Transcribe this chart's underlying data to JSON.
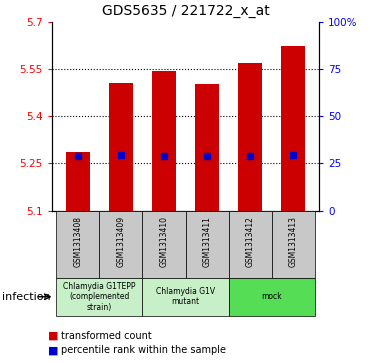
{
  "title": "GDS5635 / 221722_x_at",
  "samples": [
    "GSM1313408",
    "GSM1313409",
    "GSM1313410",
    "GSM1313411",
    "GSM1313412",
    "GSM1313413"
  ],
  "bar_tops": [
    5.285,
    5.505,
    5.543,
    5.503,
    5.568,
    5.623
  ],
  "bar_bottom": 5.1,
  "percentile_values": [
    5.273,
    5.275,
    5.272,
    5.273,
    5.274,
    5.278
  ],
  "ylim": [
    5.1,
    5.7
  ],
  "yticks_left": [
    5.1,
    5.25,
    5.4,
    5.55,
    5.7
  ],
  "yticks_right_vals": [
    0,
    25,
    50,
    75,
    100
  ],
  "yticks_right_labels": [
    "0",
    "25",
    "50",
    "75",
    "100%"
  ],
  "bar_color": "#cc0000",
  "percentile_color": "#0000cc",
  "grid_color": "#000000",
  "groups": [
    {
      "label": "Chlamydia G1TEPP\n(complemented\nstrain)",
      "start": 0,
      "end": 2,
      "color": "#c8f0c8"
    },
    {
      "label": "Chlamydia G1V\nmutant",
      "start": 2,
      "end": 4,
      "color": "#c8f0c8"
    },
    {
      "label": "mock",
      "start": 4,
      "end": 6,
      "color": "#55dd55"
    }
  ],
  "xlabel_label": "infection",
  "legend_red": "transformed count",
  "legend_blue": "percentile rank within the sample",
  "bar_width": 0.55
}
